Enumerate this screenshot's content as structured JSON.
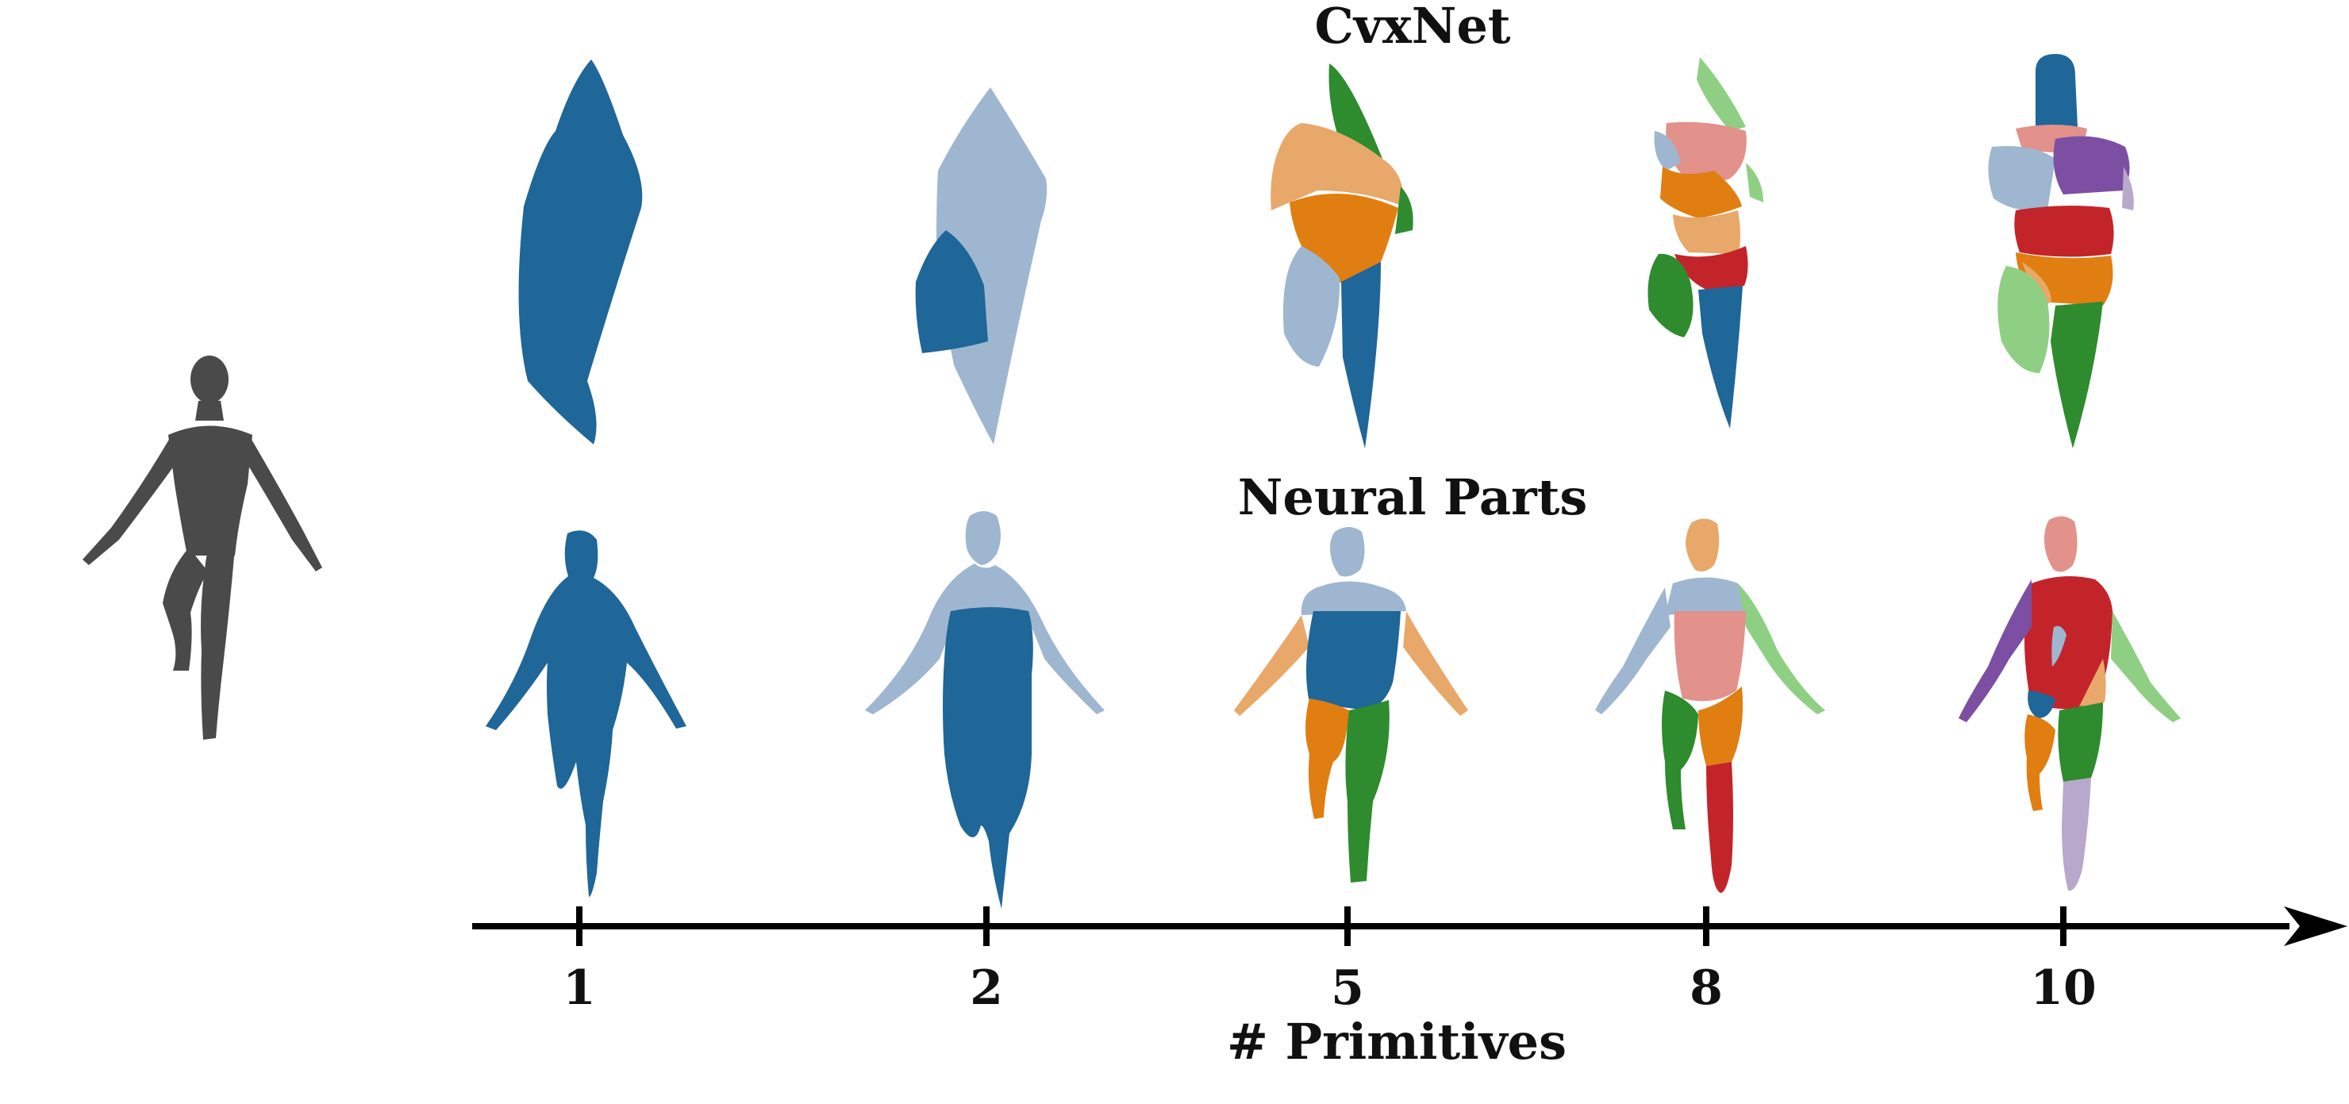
{
  "titles": {
    "cvxnet": "CvxNet",
    "neural_parts": "Neural Parts"
  },
  "axis": {
    "label": "# Primitives",
    "ticks": [
      "1",
      "2",
      "5",
      "8",
      "10"
    ]
  },
  "colors": {
    "target": "#4a4a4a",
    "blue": "#1f6699",
    "light_blue": "#9fb6d1",
    "green": "#2e8b2e",
    "orange": "#e07e12",
    "light_orange": "#e8a86a",
    "salmon": "#e2918b",
    "light_green": "#8fcf83",
    "red": "#c3242a",
    "purple": "#7c4fa3",
    "lavender": "#b8a8cc",
    "axis": "#000000"
  }
}
